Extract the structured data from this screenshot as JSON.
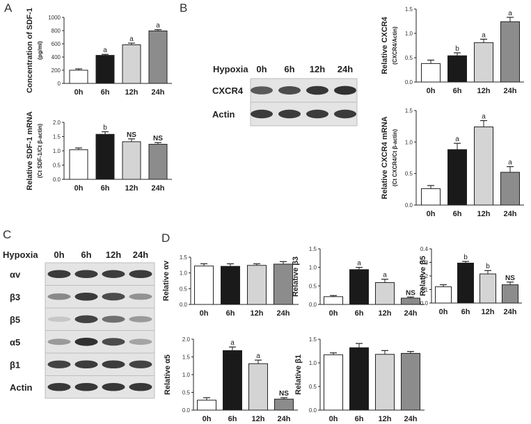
{
  "panels": {
    "A": "A",
    "B": "B",
    "C": "C",
    "D": "D"
  },
  "blot_B": {
    "header": "Hypoxia",
    "lanes": [
      "0h",
      "6h",
      "12h",
      "24h"
    ],
    "rows": [
      {
        "label": "CXCR4",
        "intensity": [
          0.72,
          0.8,
          0.92,
          0.95
        ]
      },
      {
        "label": "Actin",
        "intensity": [
          0.9,
          0.9,
          0.9,
          0.9
        ]
      }
    ]
  },
  "blot_C": {
    "header": "Hypoxia",
    "lanes": [
      "0h",
      "6h",
      "12h",
      "24h"
    ],
    "rows": [
      {
        "label": "αv",
        "intensity": [
          0.9,
          0.9,
          0.88,
          0.9
        ]
      },
      {
        "label": "β3",
        "intensity": [
          0.45,
          0.9,
          0.8,
          0.4
        ]
      },
      {
        "label": "β5",
        "intensity": [
          0.1,
          0.85,
          0.6,
          0.35
        ]
      },
      {
        "label": "α5",
        "intensity": [
          0.35,
          0.95,
          0.8,
          0.3
        ]
      },
      {
        "label": "β1",
        "intensity": [
          0.85,
          0.9,
          0.9,
          0.85
        ]
      },
      {
        "label": "Actin",
        "intensity": [
          0.92,
          0.92,
          0.92,
          0.92
        ]
      }
    ]
  },
  "chart_data": [
    {
      "id": "A1",
      "type": "bar",
      "categories": [
        "0h",
        "6h",
        "12h",
        "24h"
      ],
      "values": [
        200,
        425,
        585,
        795
      ],
      "errors": [
        20,
        15,
        25,
        20
      ],
      "annotations": [
        "",
        "a",
        "a",
        "a"
      ],
      "ylabel": "Concentration of SDF-1",
      "ylabel_sub": "(pg/ml)",
      "ylim": [
        0,
        1000
      ],
      "yticks": [
        "0",
        "200",
        "400",
        "600",
        "800",
        "1000"
      ]
    },
    {
      "id": "A2",
      "type": "bar",
      "categories": [
        "0h",
        "6h",
        "12h",
        "24h"
      ],
      "values": [
        1.04,
        1.58,
        1.32,
        1.23
      ],
      "errors": [
        0.06,
        0.09,
        0.1,
        0.06
      ],
      "annotations": [
        "",
        "b",
        "NS",
        "NS"
      ],
      "ylabel": "Relative SDF-1 mRNA",
      "ylabel_sub": "(Ct SDF-1/Ct β-actin)",
      "ylim": [
        0,
        2.0
      ],
      "yticks": [
        "0.0",
        "0.5",
        "1.0",
        "1.5",
        "2.0"
      ]
    },
    {
      "id": "B1",
      "type": "bar",
      "categories": [
        "0h",
        "6h",
        "12h",
        "24h"
      ],
      "values": [
        0.38,
        0.54,
        0.81,
        1.24
      ],
      "errors": [
        0.07,
        0.06,
        0.07,
        0.09
      ],
      "annotations": [
        "",
        "b",
        "a",
        "a"
      ],
      "ylabel": "Relative CXCR4",
      "ylabel_sub": "(CXCR4/Actin)",
      "ylim": [
        0,
        1.5
      ],
      "yticks": [
        "0.0",
        "0.5",
        "1.0",
        "1.5"
      ]
    },
    {
      "id": "B2",
      "type": "bar",
      "categories": [
        "0h",
        "6h",
        "12h",
        "24h"
      ],
      "values": [
        0.26,
        0.88,
        1.24,
        0.52
      ],
      "errors": [
        0.05,
        0.1,
        0.1,
        0.09
      ],
      "annotations": [
        "",
        "a",
        "a",
        "a"
      ],
      "ylabel": "Relative CXCR4 mRNA",
      "ylabel_sub": "(Ct CXCR4/Ct β-actin)",
      "ylim": [
        0,
        1.5
      ],
      "yticks": [
        "0.0",
        "0.5",
        "1.0",
        "1.5"
      ]
    },
    {
      "id": "D1",
      "type": "bar",
      "categories": [
        "0h",
        "6h",
        "12h",
        "24h"
      ],
      "values": [
        1.22,
        1.21,
        1.24,
        1.28
      ],
      "errors": [
        0.07,
        0.08,
        0.05,
        0.08
      ],
      "annotations": [
        "",
        "",
        "",
        ""
      ],
      "ylabel": "Relative αv",
      "ylabel_sub": "",
      "ylim": [
        0,
        1.5
      ],
      "yticks": [
        "0.0",
        "0.5",
        "1.0",
        "1.5"
      ]
    },
    {
      "id": "D2",
      "type": "bar",
      "categories": [
        "0h",
        "6h",
        "12h",
        "24h"
      ],
      "values": [
        0.21,
        0.94,
        0.59,
        0.17
      ],
      "errors": [
        0.03,
        0.06,
        0.09,
        0.03
      ],
      "annotations": [
        "",
        "a",
        "a",
        "NS"
      ],
      "ylabel": "Relative β3",
      "ylabel_sub": "",
      "ylim": [
        0,
        1.5
      ],
      "yticks": [
        "0.0",
        "0.5",
        "1.0",
        "1.5"
      ]
    },
    {
      "id": "D3",
      "type": "bar",
      "categories": [
        "0h",
        "6h",
        "12h",
        "24h"
      ],
      "values": [
        0.12,
        0.295,
        0.215,
        0.135
      ],
      "errors": [
        0.015,
        0.012,
        0.025,
        0.02
      ],
      "annotations": [
        "",
        "b",
        "b",
        "NS"
      ],
      "ylabel": "Relative β5",
      "ylabel_sub": "",
      "ylim": [
        0,
        0.4
      ],
      "yticks": [
        "0.0",
        "0.1",
        "0.2",
        "0.3",
        "0.4"
      ]
    },
    {
      "id": "D4",
      "type": "bar",
      "categories": [
        "0h",
        "6h",
        "12h",
        "24h"
      ],
      "values": [
        0.28,
        1.68,
        1.31,
        0.31
      ],
      "errors": [
        0.07,
        0.1,
        0.1,
        0.04
      ],
      "annotations": [
        "",
        "a",
        "a",
        "NS"
      ],
      "ylabel": "Relative α5",
      "ylabel_sub": "",
      "ylim": [
        0,
        2.0
      ],
      "yticks": [
        "0.0",
        "0.5",
        "1.0",
        "1.5",
        "2.0"
      ]
    },
    {
      "id": "D5",
      "type": "bar",
      "categories": [
        "0h",
        "6h",
        "12h",
        "24h"
      ],
      "values": [
        1.17,
        1.32,
        1.18,
        1.2
      ],
      "errors": [
        0.04,
        0.09,
        0.08,
        0.04
      ],
      "annotations": [
        "",
        "",
        "",
        ""
      ],
      "ylabel": "Relative β1",
      "ylabel_sub": "",
      "ylim": [
        0,
        1.5
      ],
      "yticks": [
        "0.0",
        "0.5",
        "1.0",
        "1.5"
      ]
    }
  ],
  "colors": {
    "bars": [
      "#ffffff",
      "#1a1a1a",
      "#d4d4d4",
      "#8c8c8c"
    ],
    "axis": "#222222"
  }
}
